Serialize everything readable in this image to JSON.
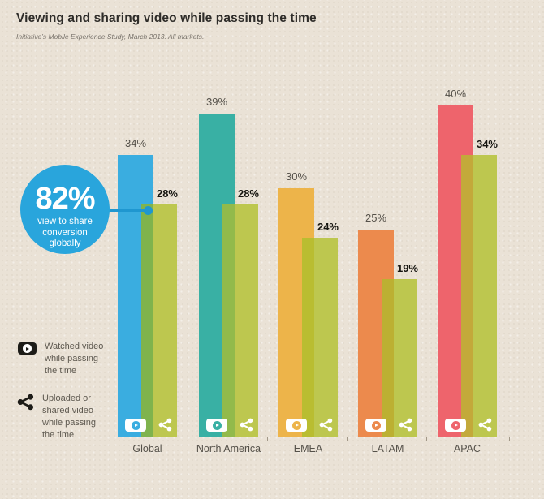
{
  "header": {
    "title": "Viewing and sharing video while passing the time",
    "subtitle": "Initiative’s Mobile Experience Study, March 2013. All markets."
  },
  "callout": {
    "value": "82%",
    "caption_lines": [
      "view to share",
      "conversion",
      "globally"
    ],
    "circle_color": "#29a5dc",
    "connector_color": "#1f97d0"
  },
  "legend": {
    "items": [
      {
        "icon": "play-badge-icon",
        "lines": [
          "Watched video",
          "while passing",
          "the time"
        ]
      },
      {
        "icon": "share-icon",
        "lines": [
          "Uploaded or",
          "shared video",
          "while passing",
          "the time"
        ]
      }
    ]
  },
  "chart_data": {
    "type": "bar",
    "categories": [
      "Global",
      "North America",
      "EMEA",
      "LATAM",
      "APAC"
    ],
    "series": [
      {
        "name": "Watched video while passing the time",
        "values": [
          34,
          39,
          30,
          25,
          40
        ]
      },
      {
        "name": "Uploaded or shared video while passing the time",
        "values": [
          28,
          28,
          24,
          19,
          34
        ]
      }
    ],
    "unit": "%",
    "ylim": [
      0,
      45
    ],
    "grid": false,
    "legend_position": "bottom-left",
    "colors": {
      "watched": [
        "#3aade0",
        "#39b0a4",
        "#edb44a",
        "#ec8a4d",
        "#ee646c"
      ],
      "shared": "#bdc74f",
      "overlap": [
        "#7fb34d",
        "#92ba4b",
        "#b9bd31",
        "#bcb032",
        "#c3a93a"
      ],
      "background": "#eae2d6",
      "axis": "#a29888"
    }
  }
}
